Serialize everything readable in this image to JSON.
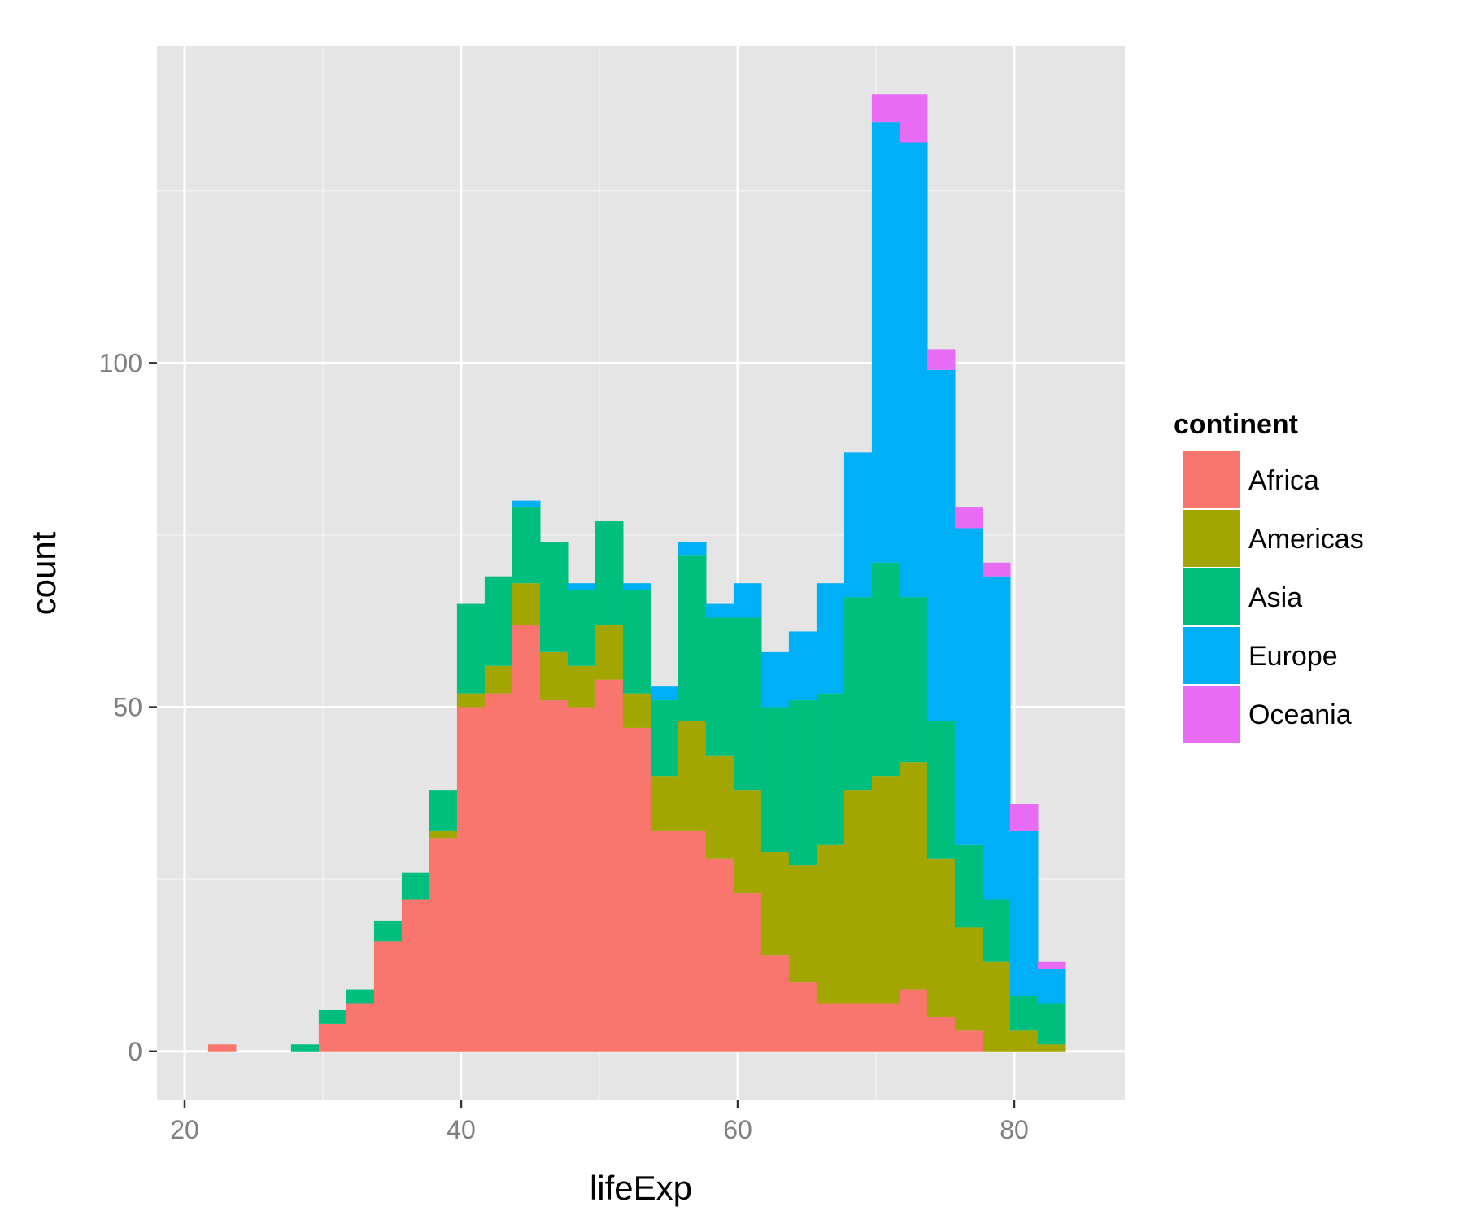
{
  "chart_data": {
    "type": "bar",
    "stacked": true,
    "title": "",
    "xlabel": "lifeExp",
    "ylabel": "count",
    "xlim": [
      18,
      88
    ],
    "ylim": [
      -7,
      146
    ],
    "xticks": [
      20,
      40,
      60,
      80
    ],
    "yticks": [
      0,
      50,
      100
    ],
    "x_tick_labels": [
      "20",
      "40",
      "60",
      "80"
    ],
    "y_tick_labels": [
      "0",
      "50",
      "100"
    ],
    "grid": true,
    "legend_position": "right",
    "legend_title": "continent",
    "bin_width": 2,
    "x": [
      22.7,
      24.7,
      26.7,
      28.7,
      30.7,
      32.7,
      34.7,
      36.7,
      38.7,
      40.7,
      42.7,
      44.7,
      46.7,
      48.7,
      50.7,
      52.7,
      54.7,
      56.7,
      58.7,
      60.7,
      62.7,
      64.7,
      66.7,
      68.7,
      70.7,
      72.7,
      74.7,
      76.7,
      78.7,
      80.7,
      82.7
    ],
    "series": [
      {
        "name": "Africa",
        "color": "#f8766d",
        "values": [
          1,
          0,
          0,
          0,
          4,
          7,
          16,
          22,
          31,
          50,
          52,
          62,
          51,
          50,
          54,
          47,
          32,
          32,
          28,
          23,
          14,
          10,
          7,
          7,
          7,
          9,
          5,
          3,
          0,
          0,
          0
        ]
      },
      {
        "name": "Americas",
        "color": "#a3a500",
        "values": [
          0,
          0,
          0,
          0,
          0,
          0,
          0,
          0,
          1,
          2,
          4,
          6,
          7,
          6,
          8,
          5,
          8,
          16,
          15,
          15,
          15,
          17,
          23,
          31,
          33,
          33,
          23,
          15,
          13,
          3,
          1
        ]
      },
      {
        "name": "Asia",
        "color": "#00bf7d",
        "values": [
          0,
          0,
          0,
          1,
          2,
          2,
          3,
          4,
          6,
          13,
          13,
          11,
          16,
          11,
          15,
          15,
          11,
          24,
          20,
          25,
          21,
          24,
          22,
          28,
          31,
          24,
          20,
          12,
          9,
          5,
          6
        ]
      },
      {
        "name": "Europe",
        "color": "#00b0f6",
        "values": [
          0,
          0,
          0,
          0,
          0,
          0,
          0,
          0,
          0,
          0,
          0,
          1,
          0,
          1,
          0,
          1,
          2,
          2,
          2,
          5,
          8,
          10,
          16,
          21,
          64,
          66,
          51,
          46,
          47,
          24,
          5
        ]
      },
      {
        "name": "Oceania",
        "color": "#e76bf3",
        "values": [
          0,
          0,
          0,
          0,
          0,
          0,
          0,
          0,
          0,
          0,
          0,
          0,
          0,
          0,
          0,
          0,
          0,
          0,
          0,
          0,
          0,
          0,
          0,
          0,
          4,
          7,
          3,
          3,
          2,
          4,
          1
        ]
      }
    ]
  },
  "colors": {
    "panel_bg": "#e5e5e5",
    "grid_major": "#ffffff",
    "grid_minor": "#f2f2f2",
    "tick_text": "#7f7f7f"
  }
}
